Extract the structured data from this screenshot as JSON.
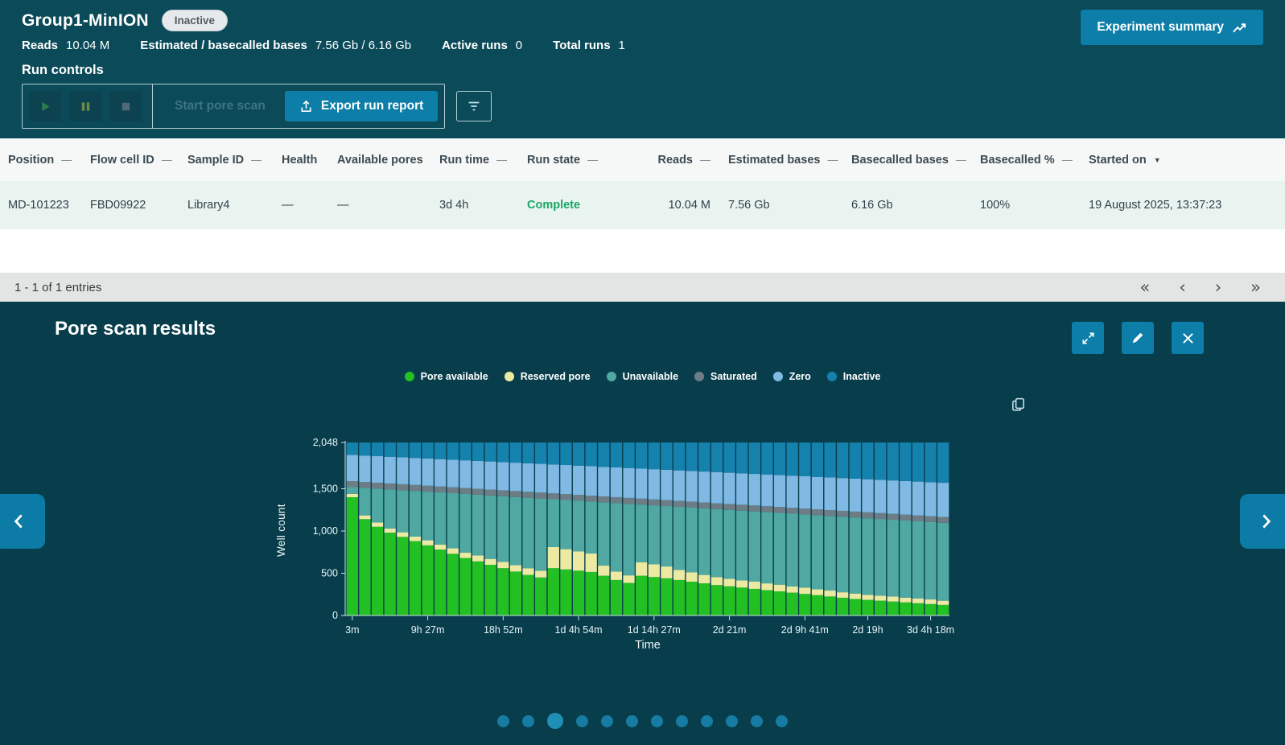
{
  "header": {
    "title": "Group1-MinION",
    "status": "Inactive",
    "experiment_summary_label": "Experiment summary",
    "stats": [
      {
        "label": "Reads",
        "value": "10.04 M"
      },
      {
        "label": "Estimated / basecalled bases",
        "value": "7.56 Gb / 6.16 Gb"
      },
      {
        "label": "Active runs",
        "value": "0"
      },
      {
        "label": "Total runs",
        "value": "1"
      }
    ],
    "run_controls_title": "Run controls",
    "start_pore_scan_label": "Start pore scan",
    "export_run_report_label": "Export run report"
  },
  "table": {
    "columns": [
      {
        "label": "Position",
        "sort": "dash"
      },
      {
        "label": "Flow cell ID",
        "sort": "dash"
      },
      {
        "label": "Sample ID",
        "sort": "dash"
      },
      {
        "label": "Health",
        "sort": null
      },
      {
        "label": "Available pores",
        "sort": null
      },
      {
        "label": "Run time",
        "sort": "dash"
      },
      {
        "label": "Run state",
        "sort": "dash"
      },
      {
        "label": "Reads",
        "sort": "dash",
        "align": "right"
      },
      {
        "label": "Estimated bases",
        "sort": "dash"
      },
      {
        "label": "Basecalled bases",
        "sort": "dash"
      },
      {
        "label": "Basecalled %",
        "sort": "dash"
      },
      {
        "label": "Started on",
        "sort": "desc"
      }
    ],
    "rows": [
      {
        "cells": [
          "MD-101223",
          "FBD09922",
          "Library4",
          "—",
          "—",
          "3d 4h",
          "Complete",
          "10.04 M",
          "7.56 Gb",
          "6.16 Gb",
          "100%",
          "19 August 2025, 13:37:23"
        ],
        "run_state_color": "#18a563"
      }
    ],
    "pagination_text": "1 - 1 of 1 entries",
    "pager": {
      "first": "«",
      "prev": "‹",
      "next": "›",
      "last": "»"
    }
  },
  "pore_scan": {
    "title": "Pore scan results",
    "dots_count": 12,
    "active_dot": 2
  },
  "colors": {
    "accent": "#0c7ea8",
    "header_bg": "#0a4a59",
    "panel_bg": "#083e4c",
    "run_state_complete": "#18a563",
    "row_tint": "#e9f4f1"
  },
  "chart_data": {
    "type": "bar",
    "stacked": true,
    "title": "Pore scan results",
    "xlabel": "Time",
    "ylabel": "Well count",
    "ylim": [
      0,
      2048
    ],
    "grid": false,
    "legend_position": "top",
    "yticks": [
      {
        "v": 0,
        "label": "0"
      },
      {
        "v": 500,
        "label": "500"
      },
      {
        "v": 1000,
        "label": "1,000"
      },
      {
        "v": 1500,
        "label": "1,500"
      },
      {
        "v": 2048,
        "label": "2,048"
      }
    ],
    "x_tick_labels": [
      "3m",
      "9h 27m",
      "18h 52m",
      "1d 4h 54m",
      "1d 14h 27m",
      "2d 21m",
      "2d 9h 41m",
      "2d 19h",
      "3d 4h 18m"
    ],
    "x_tick_indexes": [
      0,
      6,
      12,
      18,
      24,
      30,
      36,
      41,
      46
    ],
    "series": [
      {
        "name": "Pore available",
        "color": "#22c022",
        "values": [
          1400,
          1140,
          1050,
          980,
          930,
          880,
          830,
          780,
          730,
          680,
          640,
          600,
          560,
          520,
          480,
          450,
          560,
          545,
          530,
          515,
          470,
          420,
          385,
          470,
          455,
          440,
          420,
          400,
          380,
          360,
          345,
          330,
          315,
          300,
          285,
          270,
          255,
          240,
          225,
          210,
          195,
          185,
          175,
          165,
          155,
          145,
          135,
          125
        ]
      },
      {
        "name": "Reserved pore",
        "color": "#ece9a3",
        "values": [
          40,
          45,
          50,
          50,
          55,
          55,
          60,
          60,
          65,
          65,
          70,
          70,
          75,
          75,
          80,
          80,
          250,
          240,
          230,
          220,
          120,
          100,
          90,
          160,
          150,
          140,
          120,
          110,
          100,
          95,
          90,
          85,
          85,
          80,
          80,
          75,
          75,
          70,
          70,
          65,
          65,
          60,
          60,
          60,
          55,
          55,
          55,
          50
        ]
      },
      {
        "name": "Unavailable",
        "color": "#4fa9a2",
        "values": [
          80,
          326,
          402,
          463,
          499,
          540,
          576,
          617,
          653,
          694,
          720,
          751,
          777,
          808,
          834,
          855,
          566,
          582,
          598,
          614,
          750,
          811,
          847,
          683,
          699,
          715,
          746,
          767,
          788,
          804,
          815,
          826,
          832,
          843,
          849,
          860,
          866,
          877,
          883,
          894,
          900,
          906,
          907,
          908,
          914,
          915,
          916,
          922
        ]
      },
      {
        "name": "Saturated",
        "color": "#6e7d85",
        "values": [
          70,
          70,
          70,
          70,
          70,
          70,
          70,
          70,
          70,
          70,
          70,
          70,
          70,
          70,
          70,
          70,
          70,
          70,
          70,
          70,
          70,
          70,
          70,
          70,
          70,
          70,
          70,
          70,
          70,
          70,
          70,
          70,
          70,
          70,
          70,
          70,
          70,
          70,
          70,
          70,
          70,
          70,
          70,
          70,
          70,
          70,
          70,
          70
        ]
      },
      {
        "name": "Zero",
        "color": "#7fb9e4",
        "values": [
          310,
          312,
          314,
          316,
          318,
          320,
          322,
          324,
          326,
          328,
          330,
          332,
          334,
          336,
          338,
          340,
          342,
          344,
          346,
          348,
          350,
          352,
          354,
          356,
          358,
          360,
          362,
          364,
          366,
          368,
          370,
          372,
          374,
          376,
          378,
          380,
          382,
          384,
          386,
          388,
          390,
          392,
          394,
          396,
          398,
          400,
          402,
          404
        ]
      },
      {
        "name": "Inactive",
        "color": "#1581ad",
        "values": [
          148,
          155,
          162,
          169,
          176,
          183,
          190,
          197,
          204,
          211,
          218,
          225,
          232,
          239,
          246,
          253,
          260,
          267,
          274,
          281,
          288,
          295,
          302,
          309,
          316,
          323,
          330,
          337,
          344,
          351,
          358,
          365,
          372,
          379,
          386,
          393,
          400,
          407,
          414,
          421,
          428,
          435,
          442,
          449,
          456,
          463,
          470,
          477
        ]
      }
    ]
  }
}
